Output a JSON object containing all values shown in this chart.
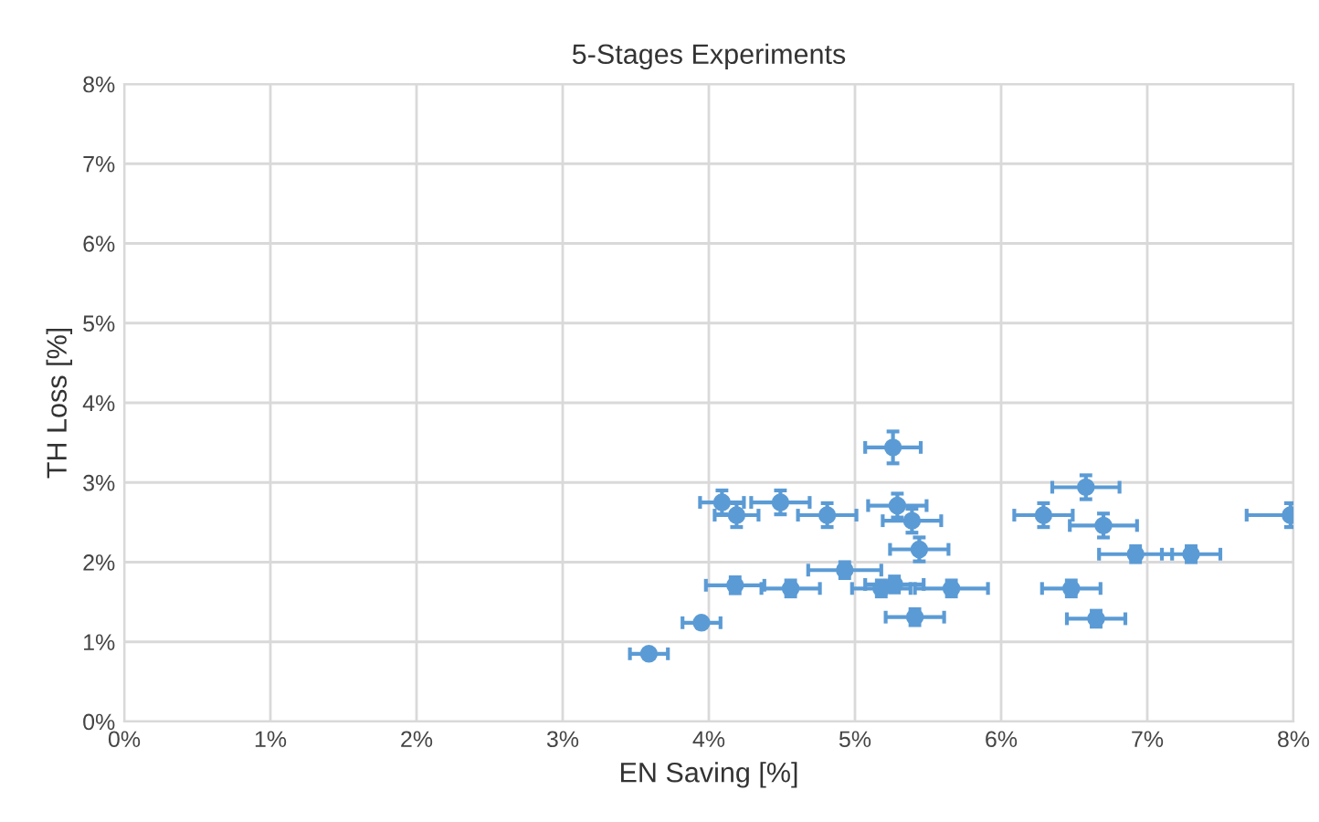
{
  "chart_data": {
    "type": "scatter",
    "title": "5-Stages Experiments",
    "xlabel": "EN Saving [%]",
    "ylabel": "TH Loss [%]",
    "xlim": [
      0,
      8
    ],
    "ylim": [
      0,
      8
    ],
    "xticks": [
      {
        "value": 0,
        "label": "0%"
      },
      {
        "value": 1,
        "label": "1%"
      },
      {
        "value": 2,
        "label": "2%"
      },
      {
        "value": 3,
        "label": "3%"
      },
      {
        "value": 4,
        "label": "4%"
      },
      {
        "value": 5,
        "label": "5%"
      },
      {
        "value": 6,
        "label": "6%"
      },
      {
        "value": 7,
        "label": "7%"
      },
      {
        "value": 8,
        "label": "8%"
      }
    ],
    "yticks": [
      {
        "value": 0,
        "label": "0%"
      },
      {
        "value": 1,
        "label": "1%"
      },
      {
        "value": 2,
        "label": "2%"
      },
      {
        "value": 3,
        "label": "3%"
      },
      {
        "value": 4,
        "label": "4%"
      },
      {
        "value": 5,
        "label": "5%"
      },
      {
        "value": 6,
        "label": "6%"
      },
      {
        "value": 7,
        "label": "7%"
      },
      {
        "value": 8,
        "label": "8%"
      }
    ],
    "grid": true,
    "marker": "circle",
    "series": [
      {
        "color": "#5b9bd5",
        "x": [
          3.59,
          3.95,
          4.18,
          4.56,
          4.93,
          5.18,
          5.27,
          5.66,
          5.41,
          5.44,
          5.39,
          5.29,
          5.26,
          4.09,
          4.19,
          4.49,
          4.81,
          6.58,
          6.29,
          6.7,
          6.92,
          7.3,
          7.98,
          6.48,
          6.65
        ],
        "values": [
          0.85,
          1.24,
          1.71,
          1.67,
          1.9,
          1.67,
          1.72,
          1.67,
          1.31,
          2.16,
          2.52,
          2.71,
          3.44,
          2.75,
          2.59,
          2.75,
          2.59,
          2.94,
          2.59,
          2.46,
          2.1,
          2.1,
          2.59,
          1.67,
          1.29
        ],
        "xerrors": [
          0.13,
          0.13,
          0.2,
          0.2,
          0.25,
          0.2,
          0.2,
          0.25,
          0.2,
          0.2,
          0.2,
          0.2,
          0.19,
          0.15,
          0.15,
          0.2,
          0.2,
          0.23,
          0.2,
          0.23,
          0.25,
          0.2,
          [
            7.68,
            8.0
          ],
          0.2,
          0.2
        ],
        "errors": [
          0.05,
          0.05,
          0.1,
          0.1,
          0.1,
          0.1,
          0.1,
          0.1,
          0.1,
          0.15,
          0.15,
          0.15,
          0.2,
          0.15,
          0.15,
          0.15,
          0.15,
          0.15,
          0.15,
          0.15,
          0.1,
          0.1,
          0.15,
          0.1,
          0.1
        ]
      }
    ]
  }
}
